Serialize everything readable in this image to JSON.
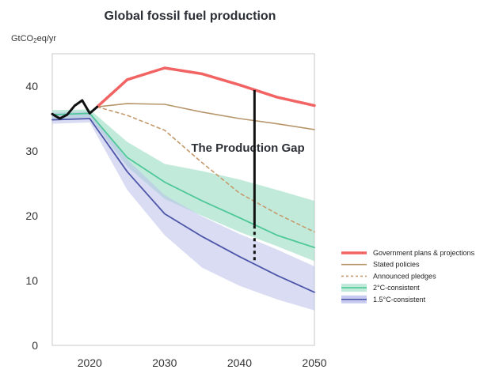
{
  "chart_data": {
    "type": "line",
    "title": "Global fossil fuel production",
    "ylabel_main": "GtCO",
    "ylabel_sub": "2",
    "ylabel_tail": "eq/yr",
    "xlim": [
      2015,
      2050
    ],
    "ylim": [
      0,
      45
    ],
    "x_ticks": [
      2020,
      2030,
      2040,
      2050
    ],
    "y_ticks": [
      0,
      10,
      20,
      30,
      40
    ],
    "annotation": {
      "text": "The Production Gap",
      "x": 2042,
      "y_top": 39.4,
      "y_bottom": 12.8,
      "y_dash_start": 18.5
    },
    "history": {
      "color": "#111111",
      "points": [
        [
          2015,
          35.7
        ],
        [
          2016,
          35.0
        ],
        [
          2017,
          35.6
        ],
        [
          2018,
          37.0
        ],
        [
          2019,
          37.8
        ],
        [
          2020,
          35.8
        ],
        [
          2021,
          36.8
        ]
      ]
    },
    "bands": [
      {
        "name": "2°C-consistent",
        "color": "#8fd8bd",
        "upper": [
          [
            2015,
            36.3
          ],
          [
            2020,
            36.4
          ],
          [
            2025,
            31.4
          ],
          [
            2030,
            28.0
          ],
          [
            2035,
            26.9
          ],
          [
            2040,
            25.6
          ],
          [
            2045,
            24.0
          ],
          [
            2050,
            22.3
          ]
        ],
        "lower": [
          [
            2015,
            34.9
          ],
          [
            2020,
            35.2
          ],
          [
            2025,
            27.6
          ],
          [
            2030,
            22.6
          ],
          [
            2035,
            20.0
          ],
          [
            2040,
            17.5
          ],
          [
            2045,
            15.3
          ],
          [
            2050,
            13.0
          ]
        ]
      },
      {
        "name": "1.5°C-consistent",
        "color": "#b9bfe9",
        "upper": [
          [
            2015,
            35.9
          ],
          [
            2020,
            36.1
          ],
          [
            2025,
            28.7
          ],
          [
            2030,
            23.2
          ],
          [
            2035,
            19.9
          ],
          [
            2040,
            17.2
          ],
          [
            2045,
            14.8
          ],
          [
            2050,
            12.2
          ]
        ],
        "lower": [
          [
            2015,
            34.2
          ],
          [
            2020,
            34.4
          ],
          [
            2025,
            24.0
          ],
          [
            2030,
            17.0
          ],
          [
            2035,
            12.0
          ],
          [
            2040,
            9.2
          ],
          [
            2045,
            7.1
          ],
          [
            2050,
            5.4
          ]
        ]
      }
    ],
    "series": [
      {
        "name": "Government plans & projections",
        "color": "#f26363",
        "width": 3.5,
        "dash": "",
        "points": [
          [
            2021,
            36.8
          ],
          [
            2025,
            41.0
          ],
          [
            2030,
            42.8
          ],
          [
            2035,
            41.9
          ],
          [
            2040,
            40.2
          ],
          [
            2045,
            38.3
          ],
          [
            2050,
            37.0
          ]
        ]
      },
      {
        "name": "Stated policies",
        "color": "#b7956a",
        "width": 1.6,
        "dash": "",
        "points": [
          [
            2021,
            36.8
          ],
          [
            2025,
            37.3
          ],
          [
            2030,
            37.2
          ],
          [
            2035,
            36.0
          ],
          [
            2040,
            35.0
          ],
          [
            2045,
            34.2
          ],
          [
            2050,
            33.3
          ]
        ]
      },
      {
        "name": "Announced pledges",
        "color": "#c49a6c",
        "width": 1.6,
        "dash": "4,4",
        "points": [
          [
            2021,
            36.8
          ],
          [
            2025,
            35.5
          ],
          [
            2030,
            33.2
          ],
          [
            2035,
            28.2
          ],
          [
            2040,
            23.5
          ],
          [
            2045,
            20.3
          ],
          [
            2050,
            17.5
          ]
        ]
      },
      {
        "name": "2°C-consistent",
        "color": "#4fc898",
        "width": 1.8,
        "dash": "",
        "points": [
          [
            2015,
            35.6
          ],
          [
            2020,
            35.8
          ],
          [
            2025,
            29.0
          ],
          [
            2030,
            25.2
          ],
          [
            2035,
            22.3
          ],
          [
            2040,
            19.7
          ],
          [
            2045,
            17.0
          ],
          [
            2050,
            15.1
          ]
        ]
      },
      {
        "name": "1.5°C-consistent",
        "color": "#4d56a8",
        "width": 1.8,
        "dash": "",
        "points": [
          [
            2015,
            34.8
          ],
          [
            2020,
            35.0
          ],
          [
            2025,
            26.8
          ],
          [
            2030,
            20.3
          ],
          [
            2035,
            16.8
          ],
          [
            2040,
            13.7
          ],
          [
            2045,
            10.8
          ],
          [
            2050,
            8.2
          ]
        ]
      }
    ],
    "legend": [
      {
        "label": "Government plans & projections",
        "color": "#f26363",
        "style": "thick"
      },
      {
        "label": "Stated policies",
        "color": "#b7956a",
        "style": "solid"
      },
      {
        "label": "Announced pledges",
        "color": "#c49a6c",
        "style": "dashed"
      },
      {
        "label": "2°C-consistent",
        "color": "#4fc898",
        "style": "band",
        "band_color": "#bfe9d8"
      },
      {
        "label": "1.5°C-consistent",
        "color": "#4d56a8",
        "style": "band",
        "band_color": "#c7cbef"
      }
    ]
  }
}
